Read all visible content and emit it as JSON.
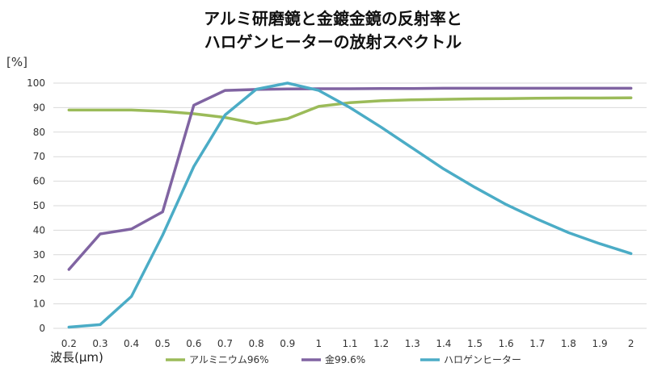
{
  "chart_data": {
    "type": "line",
    "title_lines": [
      "アルミ研磨鏡と金鍍金鏡の反射率と",
      "ハロゲンヒーターの放射スペクトル"
    ],
    "ylabel": "[%]",
    "xlabel": "波長(μm)",
    "ylim": [
      0,
      100
    ],
    "yticks": [
      0,
      10,
      20,
      30,
      40,
      50,
      60,
      70,
      80,
      90,
      100
    ],
    "grid": true,
    "legend_position": "bottom",
    "x": [
      "0.2",
      "0.3",
      "0.4",
      "0.5",
      "0.6",
      "0.7",
      "0.8",
      "0.9",
      "1",
      "1.1",
      "1.2",
      "1.3",
      "1.4",
      "1.5",
      "1.6",
      "1.7",
      "1.8",
      "1.9",
      "2"
    ],
    "series": [
      {
        "name": "アルミニウム96%",
        "color": "#9bbb59",
        "values": [
          89,
          89,
          89,
          88.5,
          87.5,
          86,
          83.5,
          85.5,
          90.5,
          92,
          92.8,
          93.2,
          93.4,
          93.6,
          93.7,
          93.8,
          93.9,
          93.9,
          94
        ]
      },
      {
        "name": "金99.6%",
        "color": "#8064a2",
        "values": [
          24,
          38.5,
          40.5,
          47.5,
          91,
          97,
          97.4,
          97.6,
          97.7,
          97.7,
          97.8,
          97.8,
          97.9,
          97.9,
          97.9,
          97.9,
          97.9,
          97.9,
          97.9
        ]
      },
      {
        "name": "ハロゲンヒーター",
        "color": "#4bacc6",
        "values": [
          0.5,
          1.5,
          13,
          38,
          66,
          87,
          97.5,
          100,
          97,
          90,
          82,
          73.5,
          65,
          57.5,
          50.5,
          44.5,
          39,
          34.5,
          30.5
        ]
      }
    ]
  }
}
